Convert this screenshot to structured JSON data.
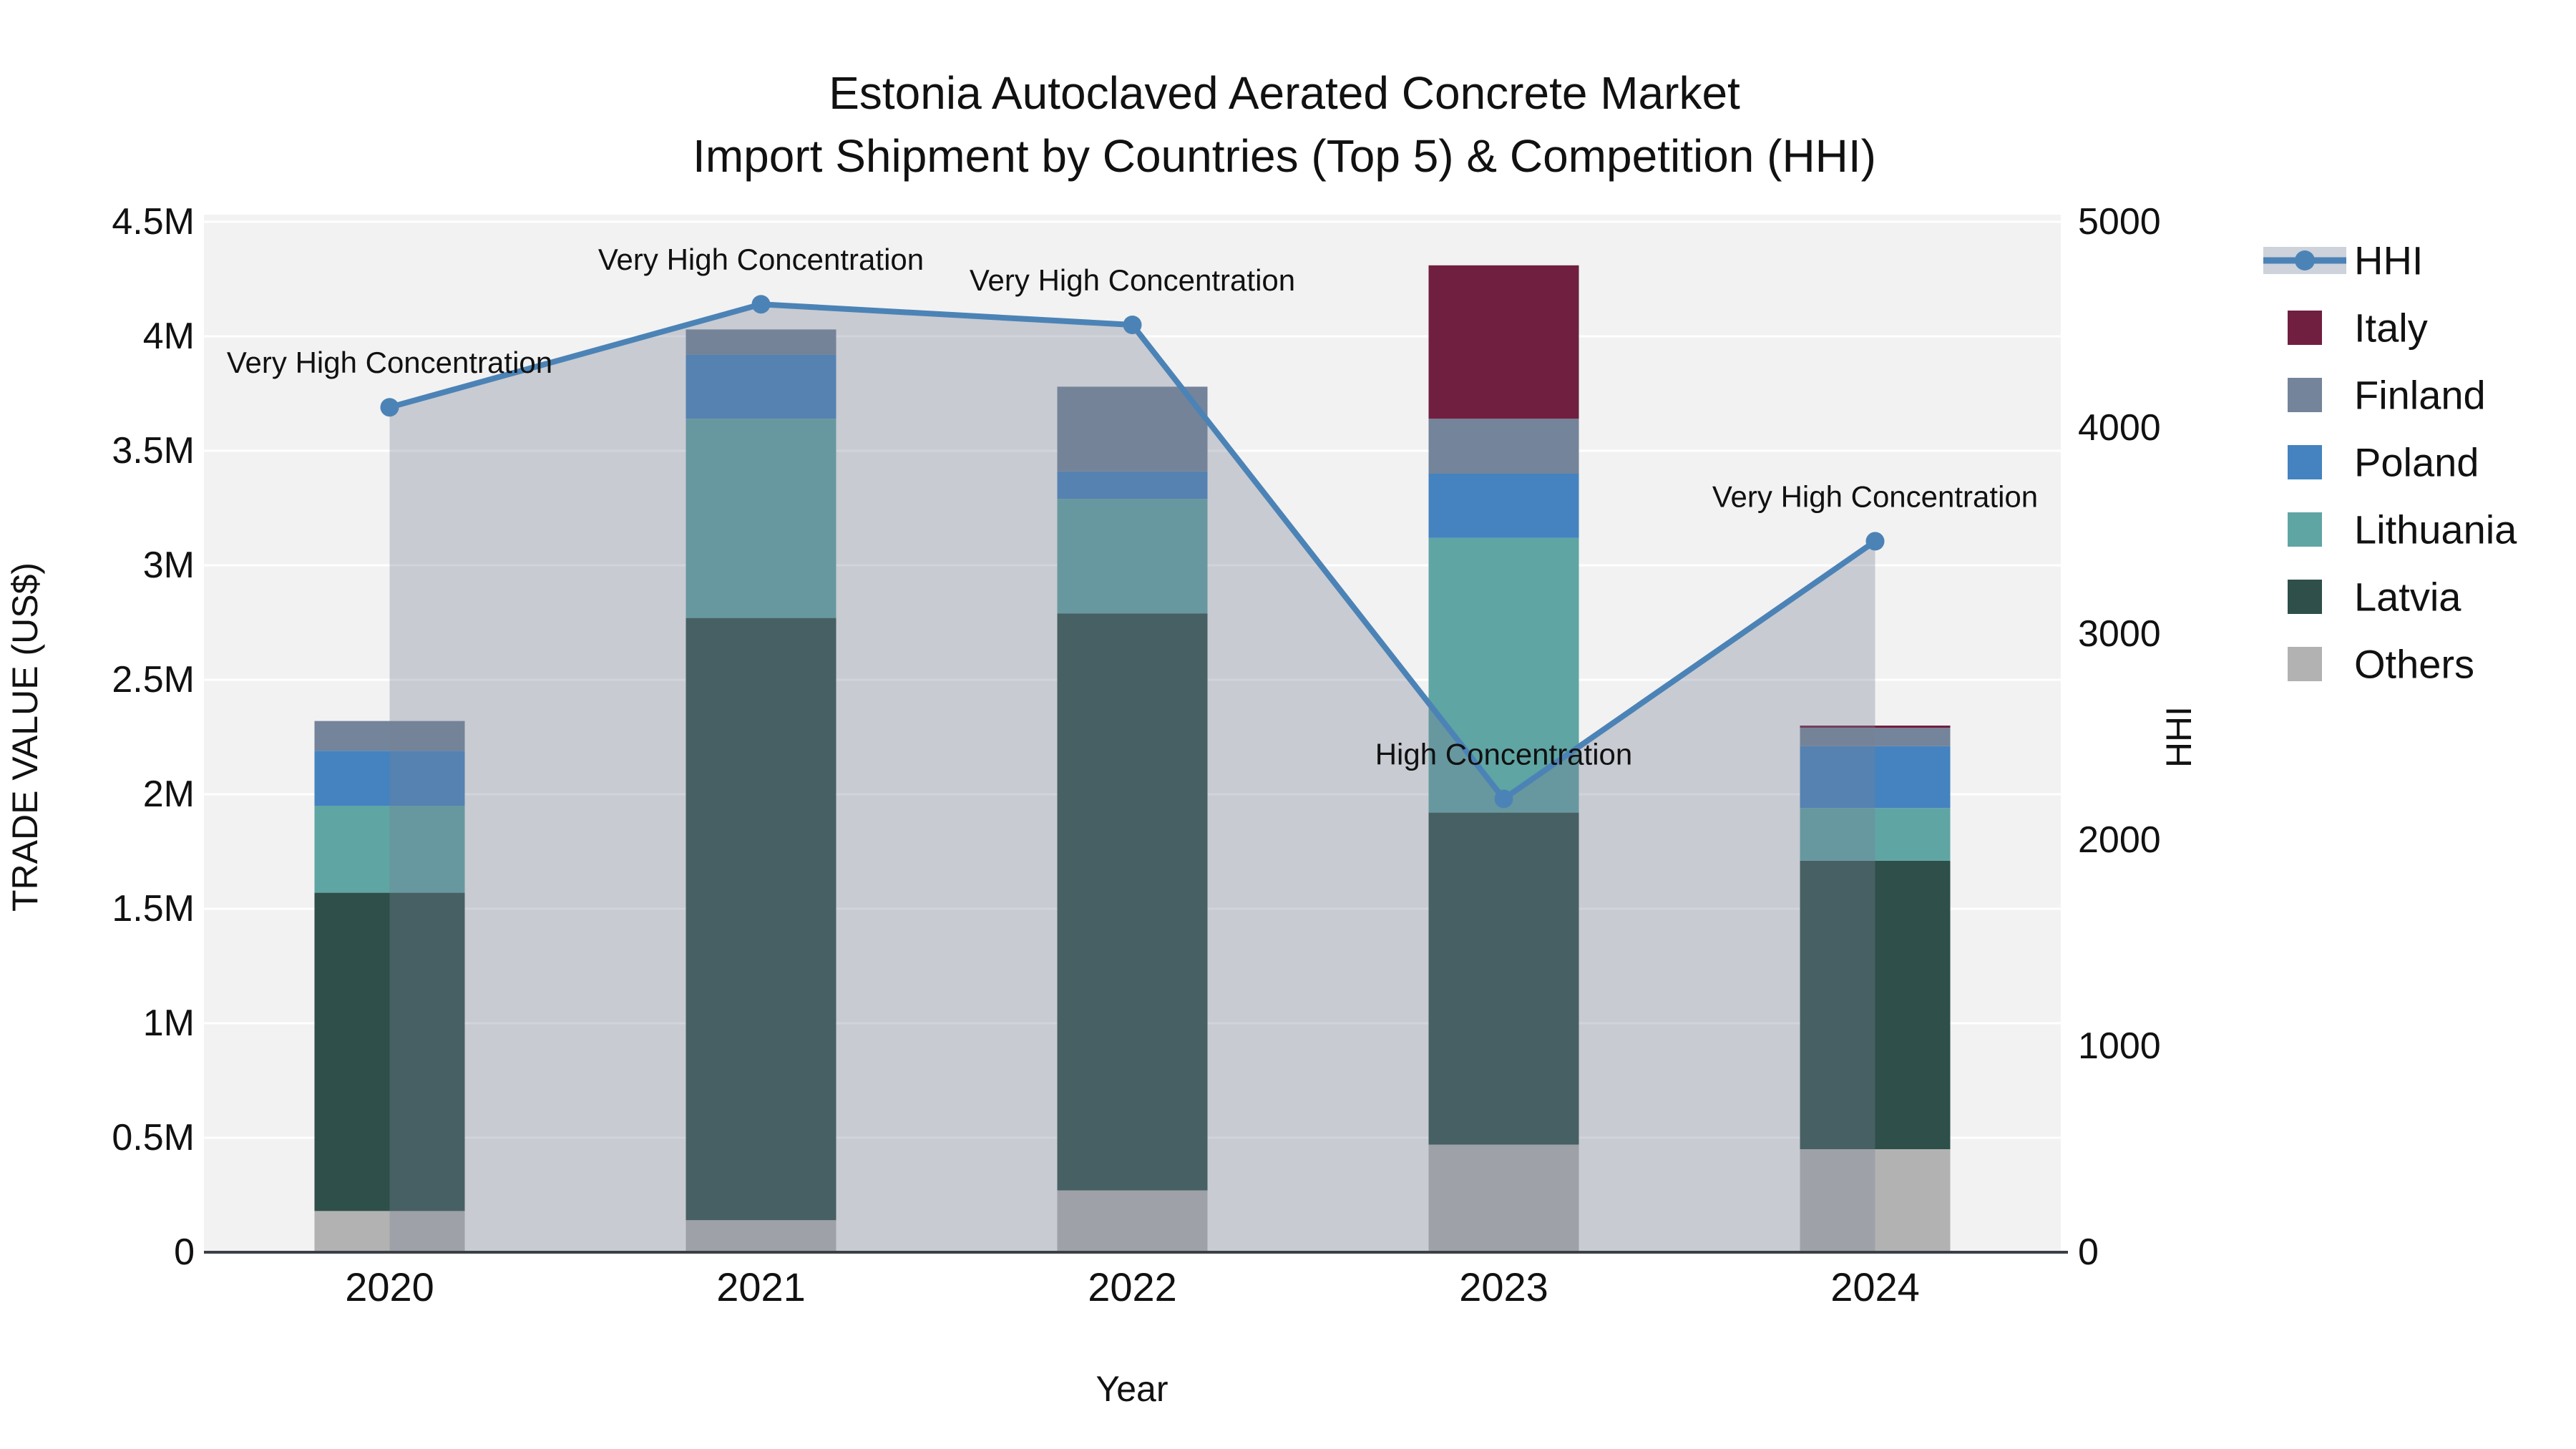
{
  "title": {
    "line1": "Estonia Autoclaved Aerated Concrete Market",
    "line2": "Import Shipment by Countries (Top 5) & Competition (HHI)"
  },
  "axes": {
    "left": {
      "title": "TRADE VALUE (US$)",
      "tick_labels": [
        "0",
        "0.5M",
        "1M",
        "1.5M",
        "2M",
        "2.5M",
        "3M",
        "3.5M",
        "4M",
        "4.5M"
      ],
      "tick_values": [
        0,
        0.5,
        1,
        1.5,
        2,
        2.5,
        3,
        3.5,
        4,
        4.5
      ],
      "range": [
        0,
        4.5
      ]
    },
    "right": {
      "title": "HHI",
      "tick_labels": [
        "0",
        "1000",
        "2000",
        "3000",
        "4000",
        "5000"
      ],
      "tick_values": [
        0,
        1000,
        2000,
        3000,
        4000,
        5000
      ],
      "range": [
        0,
        5000
      ]
    },
    "x": {
      "title": "Year",
      "categories": [
        "2020",
        "2021",
        "2022",
        "2023",
        "2024"
      ]
    }
  },
  "legend": {
    "items": [
      {
        "label": "HHI",
        "type": "line",
        "color": "#4C83B6"
      },
      {
        "label": "Italy",
        "type": "swatch",
        "color": "#701F40"
      },
      {
        "label": "Finland",
        "type": "swatch",
        "color": "#74849A"
      },
      {
        "label": "Poland",
        "type": "swatch",
        "color": "#4483BF"
      },
      {
        "label": "Lithuania",
        "type": "swatch",
        "color": "#5FA5A4"
      },
      {
        "label": "Latvia",
        "type": "swatch",
        "color": "#2E4F4A"
      },
      {
        "label": "Others",
        "type": "swatch",
        "color": "#B2B2B2"
      }
    ]
  },
  "chart_data": {
    "type": "combo-stacked-bar-line",
    "categories": [
      "2020",
      "2021",
      "2022",
      "2023",
      "2024"
    ],
    "bar_unit": "Million US$ (trade value, left axis)",
    "series": [
      {
        "name": "Others",
        "color": "#B2B2B2",
        "values": [
          0.18,
          0.14,
          0.27,
          0.47,
          0.45
        ]
      },
      {
        "name": "Latvia",
        "color": "#2E4F4A",
        "values": [
          1.39,
          2.63,
          2.52,
          1.45,
          1.26
        ]
      },
      {
        "name": "Lithuania",
        "color": "#5FA5A4",
        "values": [
          0.38,
          0.87,
          0.5,
          1.2,
          0.23
        ]
      },
      {
        "name": "Poland",
        "color": "#4483BF",
        "values": [
          0.24,
          0.28,
          0.12,
          0.28,
          0.27
        ]
      },
      {
        "name": "Finland",
        "color": "#74849A",
        "values": [
          0.13,
          0.11,
          0.37,
          0.24,
          0.08
        ]
      },
      {
        "name": "Italy",
        "color": "#701F40",
        "values": [
          0.0,
          0.0,
          0.0,
          0.67,
          0.01
        ]
      }
    ],
    "bar_totals": [
      2.32,
      4.03,
      3.78,
      4.31,
      2.3
    ],
    "line_series": {
      "name": "HHI",
      "axis": "right",
      "color": "#4C83B6",
      "area_fill": "rgba(120,130,150,0.34)",
      "values": [
        4100,
        4600,
        4500,
        2200,
        3450
      ]
    },
    "annotations": [
      {
        "category_index": 0,
        "text": "Very High Concentration"
      },
      {
        "category_index": 1,
        "text": "Very High Concentration"
      },
      {
        "category_index": 2,
        "text": "Very High Concentration"
      },
      {
        "category_index": 3,
        "text": "High Concentration"
      },
      {
        "category_index": 4,
        "text": "Very High Concentration"
      }
    ],
    "ylim_left": [
      0,
      4.5
    ],
    "ylim_right": [
      0,
      5000
    ],
    "grid": true,
    "legend_position": "right",
    "plot_bg": "#F2F2F2",
    "grid_color": "#FFFFFF",
    "axis_line_color": "#3B3F46",
    "text_color": "#111111"
  }
}
